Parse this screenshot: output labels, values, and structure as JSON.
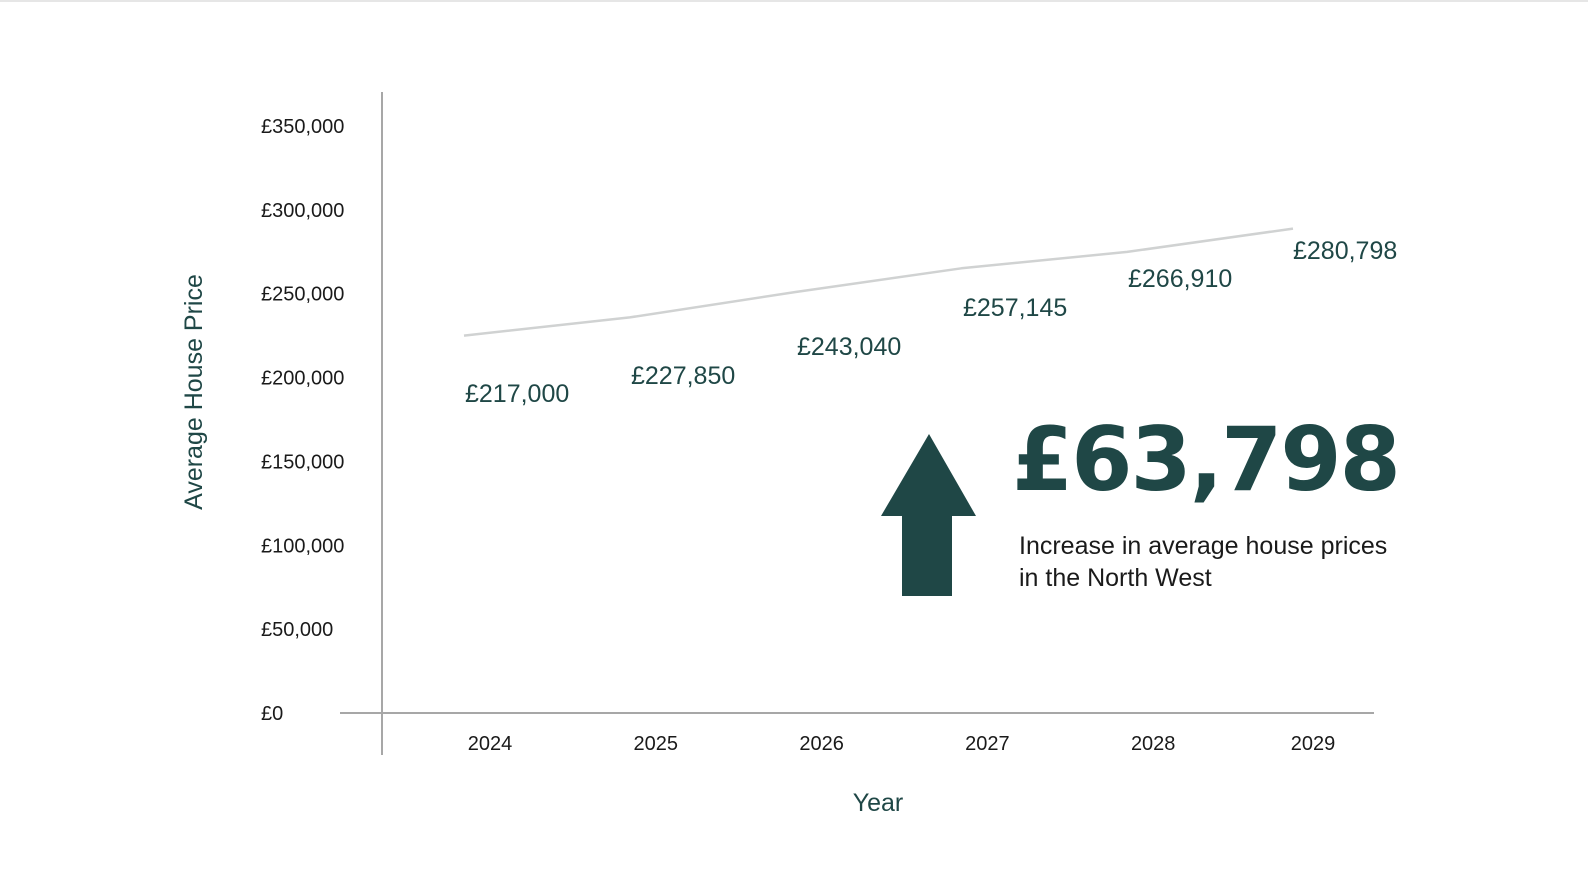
{
  "chart_data": {
    "type": "line",
    "categories": [
      "2024",
      "2025",
      "2026",
      "2027",
      "2028",
      "2029"
    ],
    "series": [
      {
        "values": [
          217000,
          227850,
          243040,
          257145,
          266910,
          280798
        ],
        "color": "#d0d2d2"
      }
    ],
    "data_labels": [
      "£217,000",
      "£227,850",
      "£243,040",
      "£257,145",
      "£266,910",
      "£280,798"
    ],
    "xlabel": "Year",
    "ylabel": "Average House Price",
    "ylim": [
      0,
      350000
    ],
    "y_ticks": [
      0,
      50000,
      100000,
      150000,
      200000,
      250000,
      300000,
      350000
    ],
    "y_tick_labels": [
      "£0",
      "£50,000",
      "£100,000",
      "£150,000",
      "£200,000",
      "£250,000",
      "£300,000",
      "£350,000"
    ],
    "grid": false,
    "legend": "none"
  },
  "callout": {
    "value": "£63,798",
    "text": "Increase in average house prices in the North West",
    "icon": "up-arrow-icon",
    "color": "#1f4746"
  },
  "colors": {
    "accent": "#1f4746",
    "axis": "#a7a7a7",
    "line": "#d0d2d2"
  }
}
